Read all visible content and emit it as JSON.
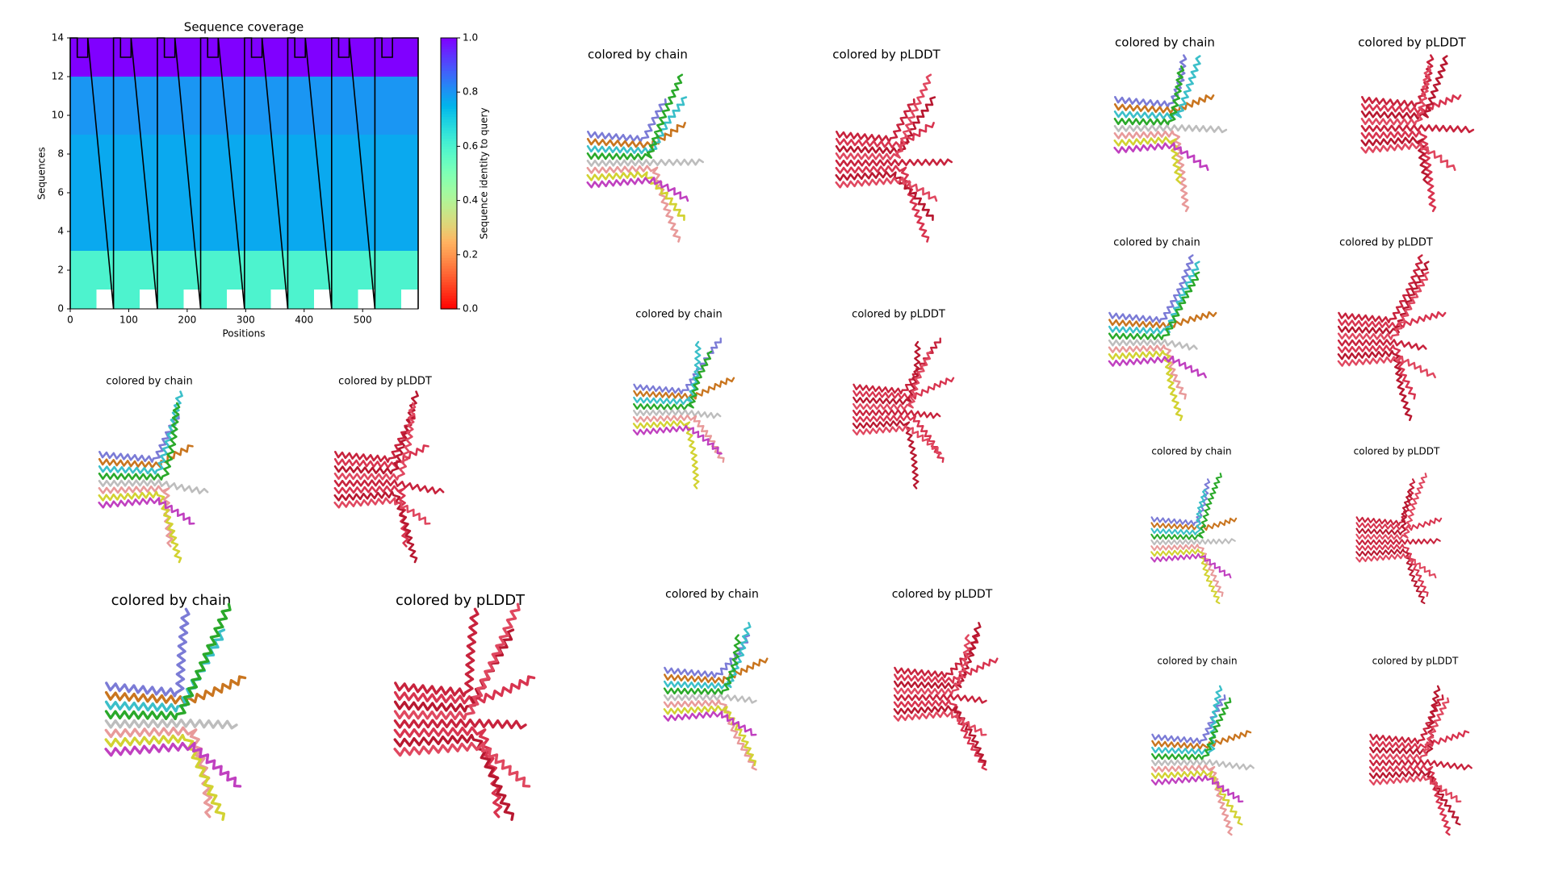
{
  "chart_data": {
    "type": "heatmap",
    "title": "Sequence coverage",
    "xlabel": "Positions",
    "ylabel": "Sequences",
    "colorbar_label": "Sequence identity to query",
    "xlim": [
      0,
      595
    ],
    "ylim": [
      0,
      14
    ],
    "xticks": [
      0,
      100,
      200,
      300,
      400,
      500
    ],
    "yticks": [
      0,
      2,
      4,
      6,
      8,
      10,
      12,
      14
    ],
    "clim": [
      0,
      1
    ],
    "cticks": [
      {
        "value": 0,
        "label": "0.0"
      },
      0.2,
      0.4,
      0.6,
      0.8,
      {
        "value": 1,
        "label": "1.0"
      }
    ],
    "colormap": "rainbow_r",
    "rows": [
      {
        "y": [
          0,
          1
        ],
        "identity": 0.6,
        "x_ranges": [
          [
            0,
            45
          ],
          [
            74,
            119
          ],
          [
            149,
            194
          ],
          [
            223,
            268
          ],
          [
            298,
            343
          ],
          [
            372,
            417
          ],
          [
            447,
            492
          ],
          [
            521,
            566
          ]
        ]
      },
      {
        "y": [
          1,
          3
        ],
        "identity": 0.6,
        "x_ranges": [
          [
            0,
            595
          ]
        ]
      },
      {
        "y": [
          3,
          9
        ],
        "identity": 0.77,
        "x_ranges": [
          [
            0,
            595
          ]
        ]
      },
      {
        "y": [
          9,
          12
        ],
        "identity": 0.8,
        "x_ranges": [
          [
            0,
            595
          ]
        ]
      },
      {
        "y": [
          12,
          14
        ],
        "identity": 1.0,
        "x_ranges": [
          [
            0,
            595
          ]
        ]
      }
    ],
    "coverage": {
      "color": "#000000",
      "x": [
        0,
        0,
        12,
        12,
        30,
        30,
        74,
        74,
        86,
        86,
        104,
        104,
        149,
        149,
        161,
        161,
        179,
        179,
        223,
        223,
        235,
        235,
        253,
        253,
        298,
        298,
        310,
        310,
        328,
        328,
        372,
        372,
        384,
        384,
        402,
        402,
        447,
        447,
        459,
        459,
        477,
        477,
        521,
        521,
        533,
        533,
        551,
        551,
        595,
        595
      ],
      "y": [
        0,
        14,
        14,
        13,
        13,
        14,
        0,
        14,
        14,
        13,
        13,
        14,
        0,
        14,
        14,
        13,
        13,
        14,
        0,
        14,
        14,
        13,
        13,
        14,
        0,
        14,
        14,
        13,
        13,
        14,
        0,
        14,
        14,
        13,
        13,
        14,
        0,
        14,
        14,
        13,
        13,
        14,
        0,
        14,
        14,
        13,
        13,
        14,
        14,
        0
      ]
    }
  },
  "panels": [
    {
      "left_title": "colored by chain",
      "right_title": "colored by pLDDT"
    },
    {
      "left_title": "colored by chain",
      "right_title": "colored by pLDDT"
    },
    {
      "left_title": "colored by chain",
      "right_title": "colored by pLDDT"
    },
    {
      "left_title": "colored by chain",
      "right_title": "colored by pLDDT"
    },
    {
      "left_title": "colored by chain",
      "right_title": "colored by pLDDT"
    },
    {
      "left_title": "colored by chain",
      "right_title": "colored by pLDDT"
    },
    {
      "left_title": "colored by chain",
      "right_title": "colored by pLDDT"
    },
    {
      "left_title": "colored by chain",
      "right_title": "colored by pLDDT"
    },
    {
      "left_title": "colored by chain",
      "right_title": "colored by pLDDT"
    }
  ]
}
